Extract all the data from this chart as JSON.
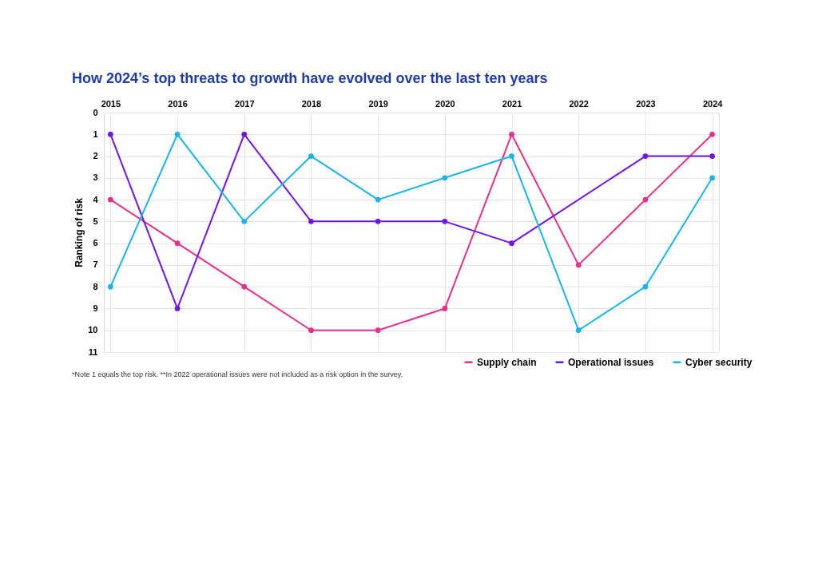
{
  "chart_data": {
    "type": "line",
    "title": "How 2024’s top threats to growth have evolved over the last ten years",
    "ylabel": "Ranking of risk",
    "categories": [
      "2015",
      "2016",
      "2017",
      "2018",
      "2019",
      "2020",
      "2021",
      "2022",
      "2023",
      "2024"
    ],
    "series": [
      {
        "name": "Supply chain",
        "color": "#e8308a",
        "values": [
          4,
          6,
          8,
          10,
          10,
          9,
          1,
          7,
          4,
          1
        ]
      },
      {
        "name": "Operational issues",
        "color": "#7213ea",
        "values": [
          1,
          9,
          1,
          5,
          5,
          5,
          6,
          null,
          2,
          2
        ]
      },
      {
        "name": "Cyber security",
        "color": "#1ab4ec",
        "values": [
          8,
          1,
          5,
          2,
          4,
          3,
          2,
          10,
          8,
          3
        ]
      }
    ],
    "ylim": [
      11,
      0
    ],
    "yticks": [
      0,
      1,
      2,
      3,
      4,
      5,
      6,
      7,
      8,
      9,
      10,
      11
    ],
    "grid": true,
    "legend": "bottom right",
    "marker": "circle",
    "line_style": "solid",
    "annotations": [
      "*Note 1 equals the top risk.  **In 2022 operational issues were not included as a risk option in the survey."
    ]
  }
}
